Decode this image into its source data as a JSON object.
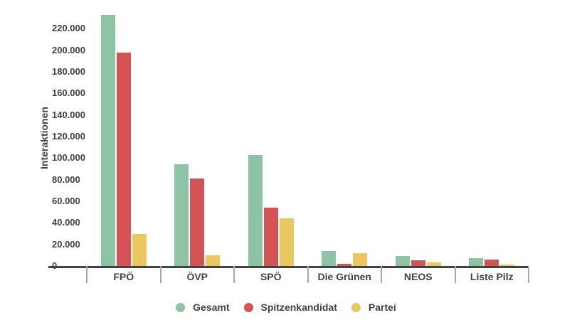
{
  "chart": {
    "y_axis_title": "Interaktionen"
  },
  "chart_data": {
    "type": "bar",
    "title": "",
    "xlabel": "",
    "ylabel": "Interaktionen",
    "categories": [
      "FPÖ",
      "ÖVP",
      "SPÖ",
      "Die Grünen",
      "NEOS",
      "Liste Pilz"
    ],
    "series": [
      {
        "name": "Gesamt",
        "color": "#8ec3a6",
        "values": [
          233000,
          94000,
          103000,
          14000,
          9000,
          7000
        ]
      },
      {
        "name": "Spitzenkandidat",
        "color": "#d45354",
        "values": [
          198000,
          81000,
          54000,
          2000,
          5000,
          6000
        ]
      },
      {
        "name": "Partei",
        "color": "#eac85f",
        "values": [
          30000,
          10000,
          44000,
          12000,
          3000,
          1500
        ]
      }
    ],
    "ylim": [
      0,
      240000
    ],
    "ytick_step": 20000,
    "ytick_labels": [
      "0",
      "20.000",
      "40.000",
      "60.000",
      "80.000",
      "100.000",
      "120.000",
      "140.000",
      "160.000",
      "180.000",
      "200.000",
      "220.000"
    ],
    "legend_position": "bottom",
    "grid": false
  },
  "colors": {
    "axis": "#424242",
    "text": "#424242",
    "divider": "#a8a8a8",
    "background": "#ffffff",
    "series_green": "#8ec3a6",
    "series_red": "#d45354",
    "series_yellow": "#eac85f"
  }
}
